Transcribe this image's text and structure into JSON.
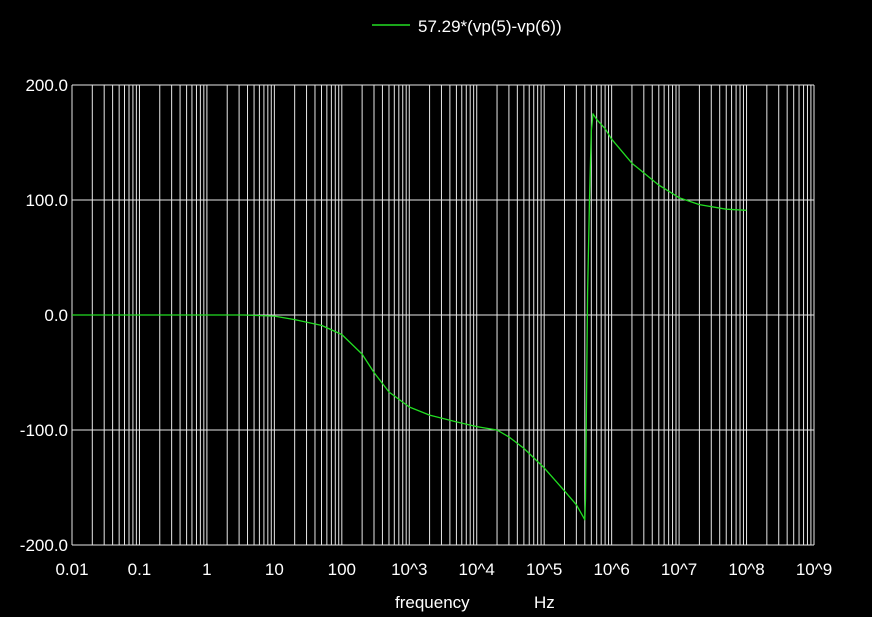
{
  "chart_data": {
    "type": "line",
    "title": "",
    "xlabel": "frequency",
    "xunit": "Hz",
    "x_scale": "log",
    "xlim": [
      0.01,
      1000000000
    ],
    "ylim": [
      -200,
      200
    ],
    "grid": true,
    "legend_position": "top-center",
    "x_tick_labels": [
      "0.01",
      "0.1",
      "1",
      "10",
      "100",
      "10^3",
      "10^4",
      "10^5",
      "10^6",
      "10^7",
      "10^8",
      "10^9"
    ],
    "y_tick_labels": [
      "200.0",
      "100.0",
      "0.0",
      "-100.0",
      "-200.0"
    ],
    "y_ticks": [
      200,
      100,
      0,
      -100,
      -200
    ],
    "series": [
      {
        "name": "57.29*(vp(5)-vp(6))",
        "color": "#22dd22",
        "x": [
          0.01,
          0.1,
          1,
          3.5,
          10,
          20,
          50,
          100,
          200,
          300,
          500,
          1000,
          2000,
          5000,
          10000,
          20000,
          30000,
          50000,
          100000,
          200000,
          300000,
          400000,
          410000,
          420000,
          440000,
          470000,
          500000,
          530000,
          600000,
          800000,
          1000000,
          2000000,
          5000000,
          10000000,
          20000000,
          50000000,
          100000000
        ],
        "values": [
          0,
          0,
          0,
          0,
          -1,
          -4,
          -9,
          -17,
          -34,
          -50,
          -67,
          -80,
          -87,
          -93,
          -97,
          -100,
          -106,
          -116,
          -133,
          -153,
          -165,
          -178,
          -160,
          -100,
          20,
          100,
          160,
          175,
          170,
          162,
          153,
          132,
          113,
          102,
          96,
          92,
          91
        ]
      }
    ]
  }
}
